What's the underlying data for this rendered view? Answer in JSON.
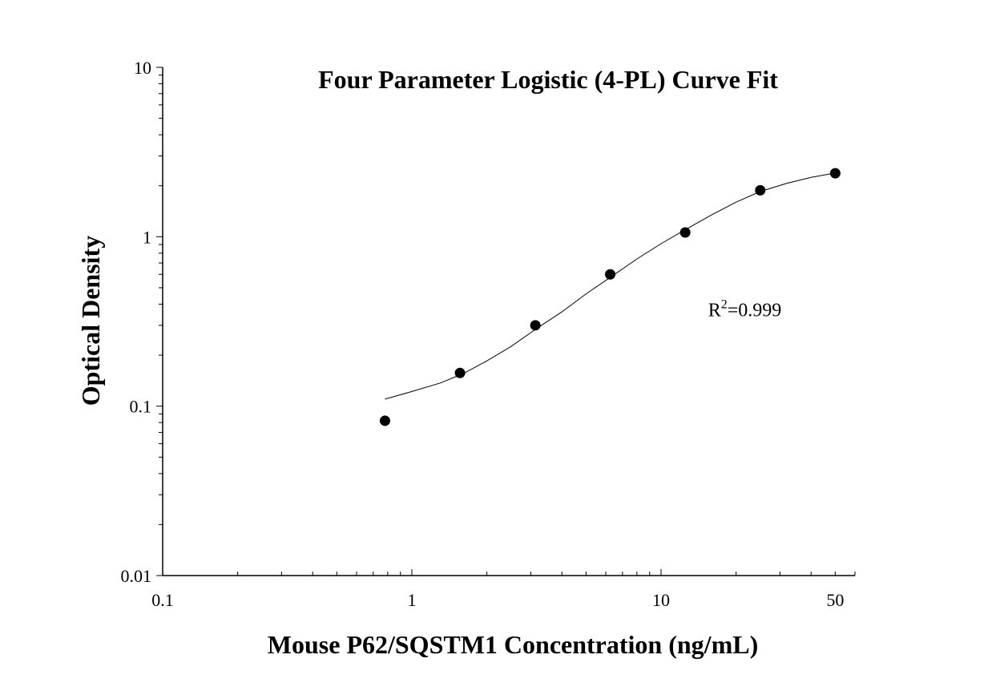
{
  "chart_data": {
    "type": "scatter",
    "title": "Four Parameter Logistic (4-PL) Curve Fit",
    "xlabel": "Mouse P62/SQSTM1 Concentration (ng/mL)",
    "ylabel": "Optical Density",
    "x_scale": "log",
    "y_scale": "log",
    "xlim": [
      0.1,
      60
    ],
    "ylim": [
      0.01,
      10
    ],
    "x_ticks": [
      {
        "value": 0.1,
        "label": "0.1"
      },
      {
        "value": 1,
        "label": "1"
      },
      {
        "value": 10,
        "label": "10"
      },
      {
        "value": 50,
        "label": "50"
      }
    ],
    "y_ticks": [
      {
        "value": 0.01,
        "label": "0.01"
      },
      {
        "value": 0.1,
        "label": "0.1"
      },
      {
        "value": 1,
        "label": "1"
      },
      {
        "value": 10,
        "label": "10"
      }
    ],
    "grid": false,
    "legend": "none",
    "series": [
      {
        "type": "scatter",
        "x": [
          0.78,
          1.56,
          3.13,
          6.25,
          12.5,
          25,
          50
        ],
        "y": [
          0.082,
          0.157,
          0.3,
          0.6,
          1.06,
          1.88,
          2.37
        ]
      },
      {
        "type": "line",
        "x": [
          0.78,
          1.0,
          1.3,
          1.6,
          2.0,
          2.5,
          3.2,
          4.0,
          5.0,
          6.3,
          8.0,
          10.0,
          12.5,
          16.0,
          20.0,
          25.0,
          32.0,
          40.0,
          50.0
        ],
        "y": [
          0.11,
          0.122,
          0.137,
          0.155,
          0.185,
          0.225,
          0.29,
          0.36,
          0.46,
          0.58,
          0.74,
          0.91,
          1.1,
          1.35,
          1.6,
          1.85,
          2.07,
          2.24,
          2.38
        ]
      }
    ],
    "annotations": [
      {
        "base": "R",
        "sup": "2",
        "rest": "=0.999",
        "x": 25,
        "y": 0.37
      }
    ]
  }
}
